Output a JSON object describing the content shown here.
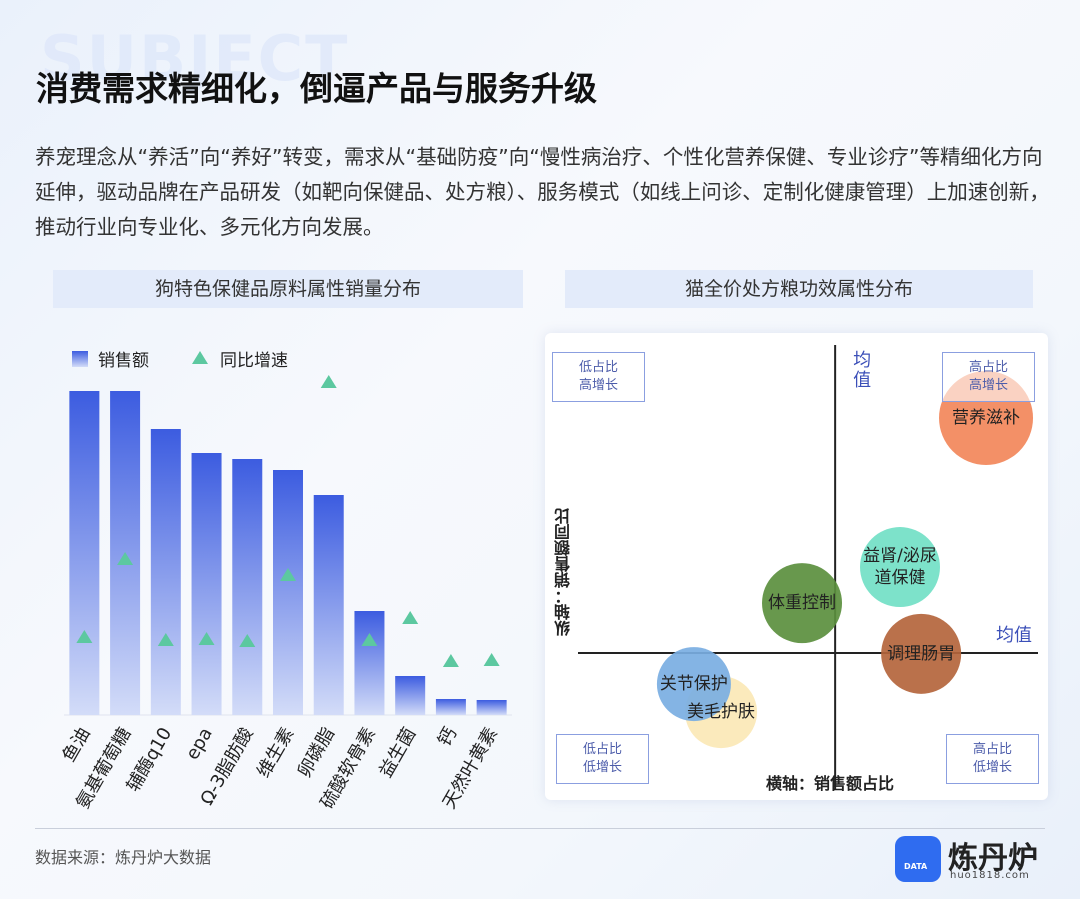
{
  "header": {
    "watermark": "SUBJECT",
    "title": "消费需求精细化，倒逼产品与服务升级",
    "description": "养宠理念从“养活”向“养好”转变，需求从“基础防疫”向“慢性病治疗、个性化营养保健、专业诊疗”等精细化方向延伸，驱动品牌在产品研发（如靶向保健品、处方粮）、服务模式（如线上问诊、定制化健康管理）上加速创新，推动行业向专业化、多元化方向发展。"
  },
  "chart_data": [
    {
      "type": "bar",
      "title": "狗特色保健品原料属性销量分布",
      "categories": [
        "鱼油",
        "氨基葡萄糖",
        "辅酶q10",
        "epa",
        "Ω-3脂肪酸",
        "维生素",
        "卵磷脂",
        "硫酸软骨素",
        "益生菌",
        "钙",
        "天然叶黄素"
      ],
      "series": [
        {
          "name": "销售额",
          "color": "#3c5ce0",
          "values": [
            324,
            324,
            286,
            262,
            256,
            245,
            220,
            104,
            39,
            16,
            15
          ]
        },
        {
          "name": "同比增速",
          "color": "#5cc8a0",
          "values": [
            78,
            156,
            75,
            76,
            74,
            140,
            333,
            75,
            97,
            54,
            55
          ]
        }
      ],
      "ylim": [
        0,
        340
      ]
    },
    {
      "type": "bubble",
      "title": "猫全价处方粮功效属性分布",
      "x_label": "横轴：销售额占比",
      "y_label": "纵轴：销售额同比",
      "x_mean_label": "均值",
      "y_mean_label": "均值",
      "xlim": [
        0,
        100
      ],
      "ylim": [
        0,
        100
      ],
      "x_mean": 55.9,
      "y_mean": 30.8,
      "quadrant_labels": {
        "top_left": "低占比\n高增长",
        "top_right": "高占比\n高增长",
        "bottom_left": "低占比\n低增长",
        "bottom_right": "高占比\n低增长"
      },
      "points": [
        {
          "name": "营养滋补",
          "x": 88.7,
          "y": 83.6,
          "size": 47,
          "color": "#f2875a"
        },
        {
          "name": "益肾/泌尿\n道保健",
          "x": 70.0,
          "y": 50.1,
          "size": 40,
          "color": "#72e0c6"
        },
        {
          "name": "体重控制",
          "x": 48.7,
          "y": 42.0,
          "size": 40,
          "color": "#5b8f3e"
        },
        {
          "name": "调理肠胃",
          "x": 74.6,
          "y": 30.6,
          "size": 40,
          "color": "#b4653c"
        },
        {
          "name": "美毛护肤",
          "x": 31.1,
          "y": 17.5,
          "size": 36,
          "color": "#fbe8b6"
        },
        {
          "name": "关节保护",
          "x": 25.2,
          "y": 23.8,
          "size": 37,
          "color": "#7aaee2"
        }
      ]
    }
  ],
  "footer": {
    "source": "数据来源：炼丹炉大数据",
    "logo": "炼丹炉",
    "logo_icon": "DATA",
    "url": "huo1818.com"
  }
}
